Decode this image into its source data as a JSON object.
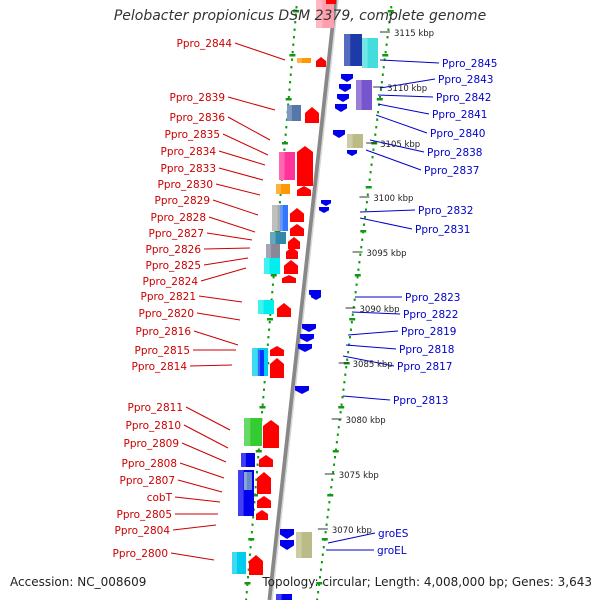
{
  "title": "Pelobacter propionicus DSM 2379, complete genome",
  "accession_text": "Accession: NC_008609",
  "summary_text": "Topology: circular; Length: 4,008,000 bp; Genes: 3,643",
  "colors": {
    "forward_label": "#cc0000",
    "reverse_label": "#0000cc",
    "arrow_forward": "#ff0000",
    "arrow_reverse": "#0000ee",
    "tick": "#119911"
  },
  "scale_labels": [
    "3115 kbp",
    "3110 kbp",
    "3105 kbp",
    "3100 kbp",
    "3095 kbp",
    "3090 kbp",
    "3085 kbp",
    "3080 kbp",
    "3075 kbp",
    "3070 kbp"
  ],
  "forward_genes": [
    "Ppro_2844",
    "Ppro_2839",
    "Ppro_2836",
    "Ppro_2835",
    "Ppro_2834",
    "Ppro_2833",
    "Ppro_2830",
    "Ppro_2829",
    "Ppro_2828",
    "Ppro_2827",
    "Ppro_2826",
    "Ppro_2825",
    "Ppro_2824",
    "Ppro_2821",
    "Ppro_2820",
    "Ppro_2816",
    "Ppro_2815",
    "Ppro_2814",
    "Ppro_2811",
    "Ppro_2810",
    "Ppro_2809",
    "Ppro_2808",
    "Ppro_2807",
    "cobT",
    "Ppro_2805",
    "Ppro_2804",
    "Ppro_2800"
  ],
  "reverse_genes": [
    "Ppro_2845",
    "Ppro_2843",
    "Ppro_2842",
    "Ppro_2841",
    "Ppro_2840",
    "Ppro_2838",
    "Ppro_2837",
    "Ppro_2832",
    "Ppro_2831",
    "Ppro_2823",
    "Ppro_2822",
    "Ppro_2819",
    "Ppro_2818",
    "Ppro_2817",
    "Ppro_2813",
    "groES",
    "groEL"
  ]
}
